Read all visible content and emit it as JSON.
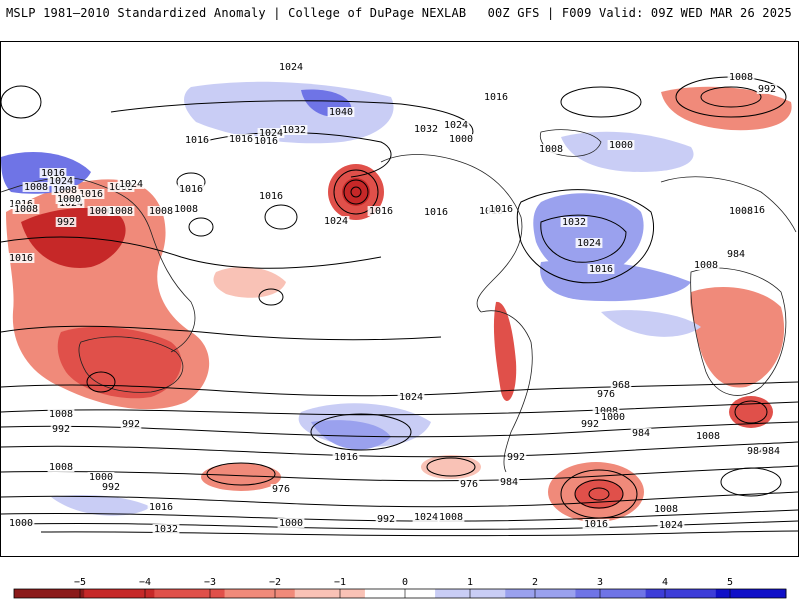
{
  "header": {
    "title_left": "MSLP 1981–2010 Standardized Anomaly | College of DuPage NEXLAB",
    "title_right": "00Z GFS | F009 Valid: 09Z WED MAR 26 2025"
  },
  "colors": {
    "anom_neg5": "#8b1a1a",
    "anom_neg4": "#c62828",
    "anom_neg3": "#e0504a",
    "anom_neg2": "#f08a7a",
    "anom_neg1": "#f9c2b6",
    "anom_zero": "#ffffff",
    "anom_pos1": "#c9cdf5",
    "anom_pos2": "#9aa1ee",
    "anom_pos3": "#6f74e6",
    "anom_pos4": "#3d3dd8",
    "anom_pos5": "#1010c8",
    "contour": "#000000",
    "coast": "#222222"
  },
  "isobar_labels": [
    {
      "text": "1024"
    },
    {
      "text": "1008"
    },
    {
      "text": "992"
    },
    {
      "text": "1040"
    },
    {
      "text": "1032"
    },
    {
      "text": "1016"
    },
    {
      "text": "1024"
    },
    {
      "text": "1016"
    },
    {
      "text": "1008"
    },
    {
      "text": "1032"
    },
    {
      "text": "1024"
    },
    {
      "text": "1000"
    },
    {
      "text": "1016"
    },
    {
      "text": "1008"
    },
    {
      "text": "1024"
    },
    {
      "text": "1008"
    },
    {
      "text": "1016"
    },
    {
      "text": "1024"
    },
    {
      "text": "1000"
    },
    {
      "text": "992"
    },
    {
      "text": "1008"
    },
    {
      "text": "1016"
    },
    {
      "text": "1008"
    },
    {
      "text": "1016"
    },
    {
      "text": "1024"
    },
    {
      "text": "1016"
    },
    {
      "text": "1016"
    },
    {
      "text": "1032"
    },
    {
      "text": "1024"
    },
    {
      "text": "1016"
    },
    {
      "text": "1008"
    },
    {
      "text": "1016"
    },
    {
      "text": "1000"
    },
    {
      "text": "1008"
    },
    {
      "text": "1008"
    },
    {
      "text": "1008"
    },
    {
      "text": "1016"
    },
    {
      "text": "1016"
    },
    {
      "text": "1016"
    },
    {
      "text": "1016"
    },
    {
      "text": "1024"
    },
    {
      "text": "1016"
    },
    {
      "text": "1000"
    },
    {
      "text": "1008"
    },
    {
      "text": "1016"
    },
    {
      "text": "992"
    },
    {
      "text": "984"
    },
    {
      "text": "976"
    },
    {
      "text": "968"
    },
    {
      "text": "1008"
    },
    {
      "text": "984"
    },
    {
      "text": "1008"
    },
    {
      "text": "1000"
    },
    {
      "text": "992"
    },
    {
      "text": "984"
    },
    {
      "text": "1008"
    },
    {
      "text": "992"
    },
    {
      "text": "1024"
    },
    {
      "text": "976"
    },
    {
      "text": "1016"
    },
    {
      "text": "1008"
    },
    {
      "text": "1000"
    },
    {
      "text": "992"
    },
    {
      "text": "976"
    },
    {
      "text": "984"
    },
    {
      "text": "1032"
    },
    {
      "text": "1000"
    },
    {
      "text": "1016"
    },
    {
      "text": "992"
    },
    {
      "text": "1024"
    },
    {
      "text": "1008"
    },
    {
      "text": "1000"
    },
    {
      "text": "992"
    },
    {
      "text": "1016"
    },
    {
      "text": "1008"
    },
    {
      "text": "1024"
    },
    {
      "text": "984"
    }
  ],
  "colorbar": {
    "ticks": [
      "−5",
      "−4",
      "−3",
      "−2",
      "−1",
      "0",
      "1",
      "2",
      "3",
      "4",
      "5"
    ]
  }
}
